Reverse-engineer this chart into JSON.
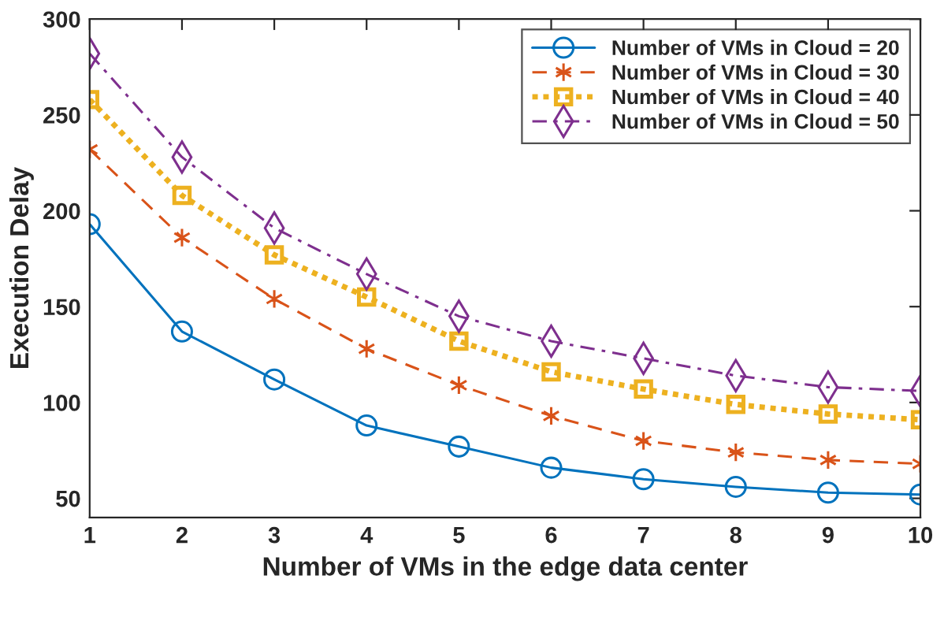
{
  "chart_data": {
    "type": "line",
    "xlabel": "Number of VMs in the edge data center",
    "ylabel": "Execution Delay",
    "x": [
      1,
      2,
      3,
      4,
      5,
      6,
      7,
      8,
      9,
      10
    ],
    "series": [
      {
        "name": "Number of VMs in Cloud = 20",
        "color": "#0072bd",
        "marker": "circle",
        "line_style": "solid",
        "values": [
          193,
          137,
          112,
          88,
          77,
          66,
          60,
          56,
          53,
          52
        ]
      },
      {
        "name": "Number of VMs in Cloud = 30",
        "color": "#d95319",
        "marker": "cross",
        "line_style": "dashed",
        "values": [
          232,
          186,
          154,
          128,
          109,
          93,
          80,
          74,
          70,
          68
        ]
      },
      {
        "name": "Number of VMs in Cloud = 40",
        "color": "#edb120",
        "marker": "square",
        "line_style": "dotted",
        "values": [
          258,
          208,
          177,
          155,
          132,
          116,
          107,
          99,
          94,
          91
        ]
      },
      {
        "name": "Number of VMs in Cloud = 50",
        "color": "#7e2f8e",
        "marker": "diamond",
        "line_style": "dashdot",
        "values": [
          282,
          228,
          191,
          167,
          145,
          132,
          123,
          114,
          108,
          106
        ]
      }
    ],
    "xlim": [
      1,
      10
    ],
    "xticks": [
      1,
      2,
      3,
      4,
      5,
      6,
      7,
      8,
      9,
      10
    ],
    "ylim": [
      40,
      300
    ],
    "yticks": [
      50,
      100,
      150,
      200,
      250,
      300
    ],
    "grid": false,
    "legend": "top right"
  }
}
